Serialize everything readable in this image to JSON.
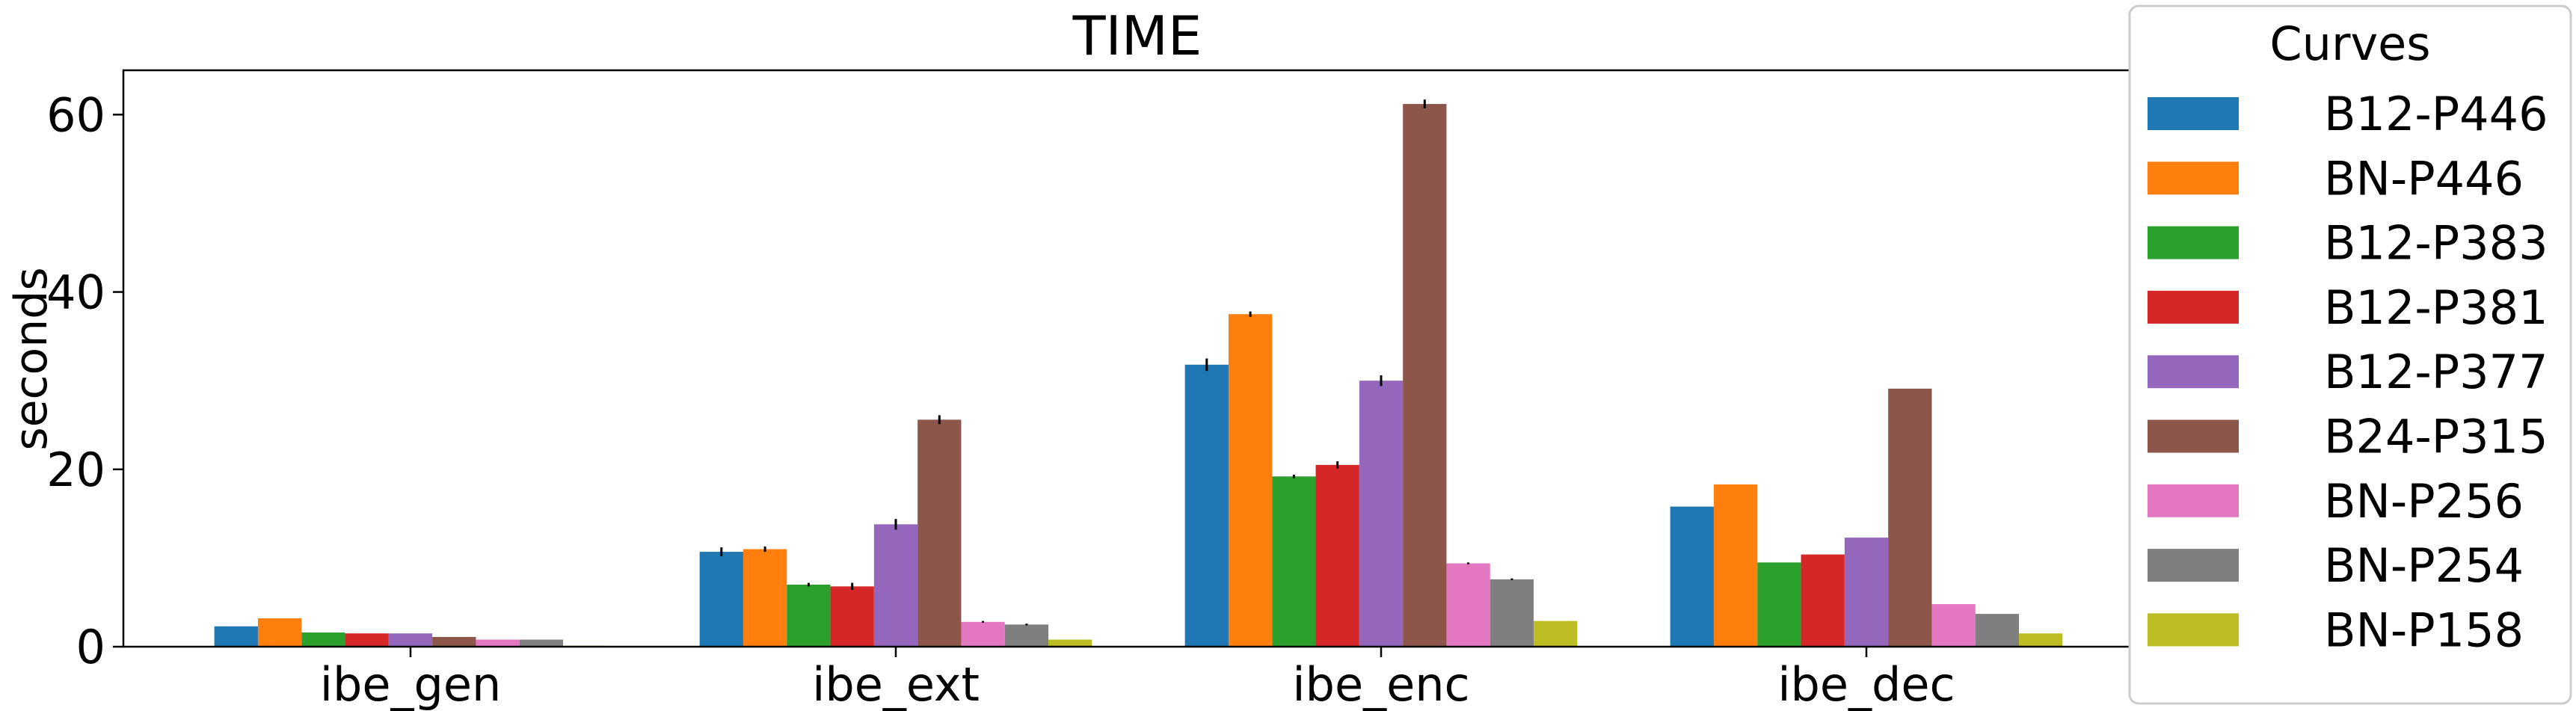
{
  "chart_data": {
    "type": "bar",
    "title": "TIME",
    "xlabel": "",
    "ylabel": "seconds",
    "ylim": [
      0,
      65
    ],
    "yticks": [
      0,
      20,
      40,
      60
    ],
    "grid": false,
    "legend": {
      "title": "Curves",
      "placement": "outside-right"
    },
    "categories": [
      "ibe_gen",
      "ibe_ext",
      "ibe_enc",
      "ibe_dec"
    ],
    "series": [
      {
        "name": "B12-P446",
        "color": "#1f77b4",
        "values": [
          2.3,
          10.7,
          31.8,
          15.8
        ],
        "err": [
          0.0,
          0.5,
          0.7,
          0.0
        ]
      },
      {
        "name": "BN-P446",
        "color": "#ff7f0e",
        "values": [
          3.2,
          11.0,
          37.5,
          18.3
        ],
        "err": [
          0.0,
          0.3,
          0.3,
          0.0
        ]
      },
      {
        "name": "B12-P383",
        "color": "#2ca02c",
        "values": [
          1.6,
          7.0,
          19.2,
          9.5
        ],
        "err": [
          0.0,
          0.2,
          0.2,
          0.0
        ]
      },
      {
        "name": "B12-P381",
        "color": "#d62728",
        "values": [
          1.5,
          6.8,
          20.5,
          10.4
        ],
        "err": [
          0.0,
          0.4,
          0.4,
          0.0
        ]
      },
      {
        "name": "B12-P377",
        "color": "#9467bd",
        "values": [
          1.5,
          13.8,
          30.0,
          12.3
        ],
        "err": [
          0.0,
          0.6,
          0.6,
          0.0
        ]
      },
      {
        "name": "B24-P315",
        "color": "#8c564b",
        "values": [
          1.1,
          25.6,
          61.2,
          29.1
        ],
        "err": [
          0.0,
          0.5,
          0.5,
          0.0
        ]
      },
      {
        "name": "BN-P256",
        "color": "#e377c2",
        "values": [
          0.8,
          2.8,
          9.4,
          4.8
        ],
        "err": [
          0.0,
          0.1,
          0.1,
          0.0
        ]
      },
      {
        "name": "BN-P254",
        "color": "#7f7f7f",
        "values": [
          0.8,
          2.5,
          7.6,
          3.7
        ],
        "err": [
          0.0,
          0.1,
          0.1,
          0.0
        ]
      },
      {
        "name": "BN-P158",
        "color": "#bcbd22",
        "values": [
          0.1,
          0.8,
          2.9,
          1.5
        ],
        "err": [
          0.0,
          0.0,
          0.0,
          0.0
        ]
      }
    ]
  }
}
